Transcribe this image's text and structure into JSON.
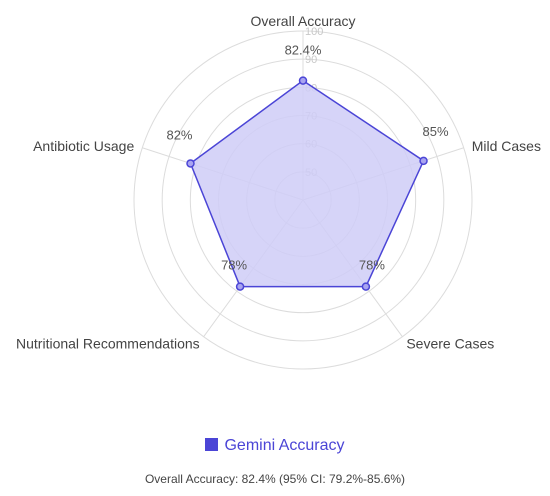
{
  "chart_data": {
    "type": "radar",
    "axes": [
      "Overall Accuracy",
      "Mild Cases",
      "Severe Cases",
      "Nutritional Recommendations",
      "Antibiotic Usage"
    ],
    "series": [
      {
        "name": "Gemini Accuracy",
        "values": [
          82.4,
          85,
          78,
          78,
          82
        ]
      }
    ],
    "data_labels": [
      "82.4%",
      "85%",
      "78%",
      "78%",
      "82%"
    ],
    "r_range": [
      40,
      100
    ],
    "r_ticks": [
      50,
      60,
      70,
      80,
      90,
      100
    ],
    "tick_labels": [
      "50",
      "60",
      "70",
      "80",
      "90",
      "100"
    ],
    "grid": true,
    "legend_position": "bottom",
    "series_color": "#4b45d6",
    "fill_color": "#cfccf7",
    "footnote": "Overall Accuracy: 82.4% (95% CI: 79.2%-85.6%)"
  }
}
